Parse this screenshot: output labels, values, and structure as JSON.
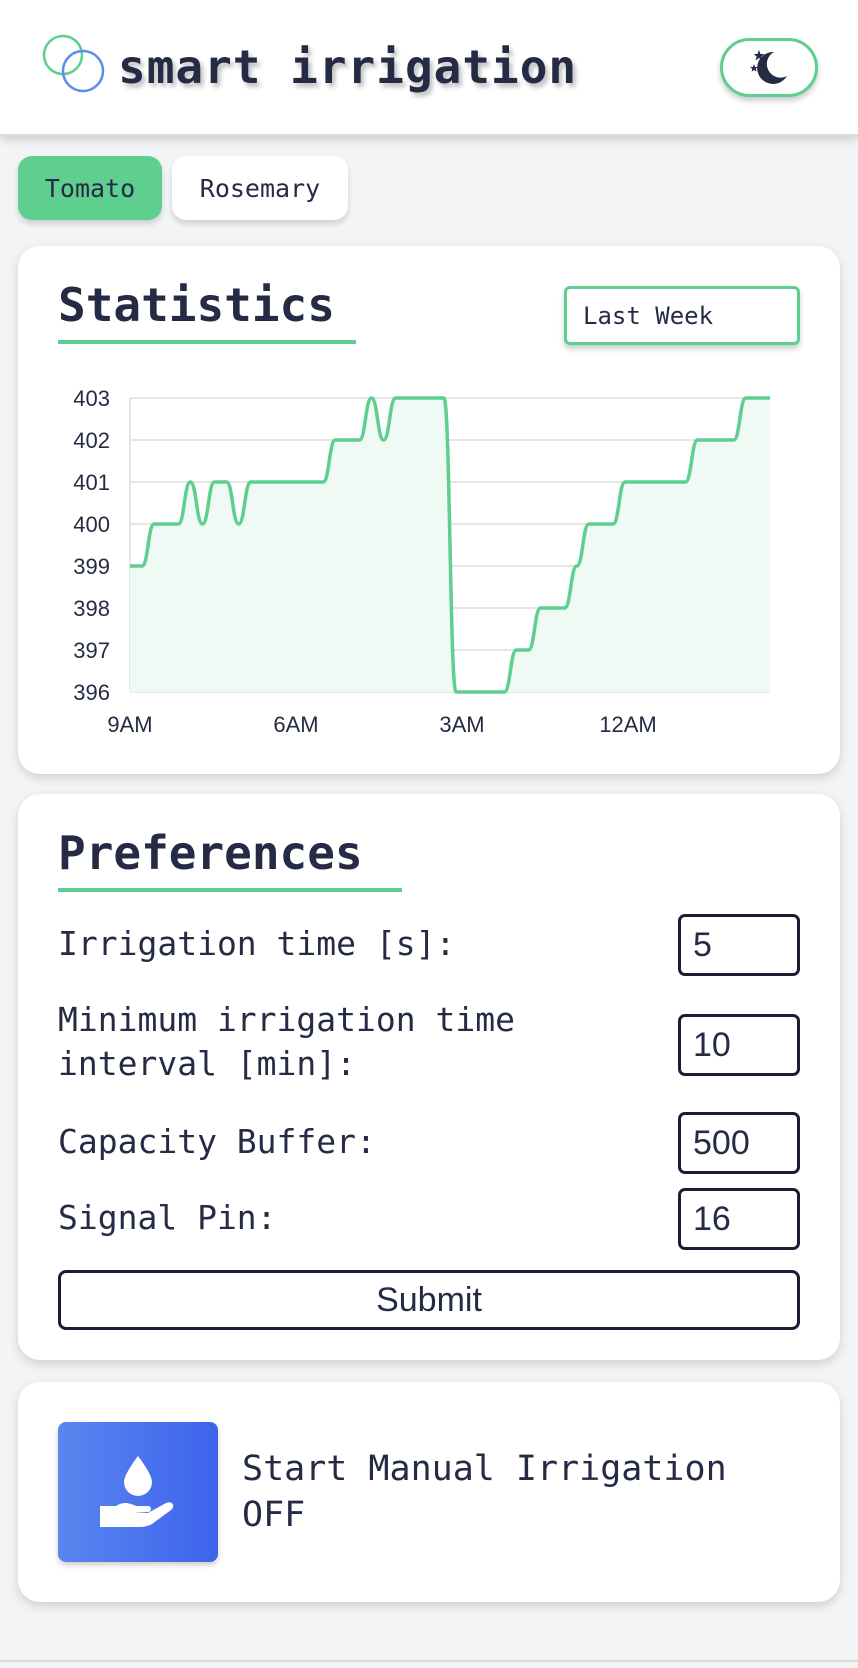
{
  "header": {
    "title": "smart irrigation",
    "logo_icon": "overlapping-circles-icon",
    "theme_toggle_icon": "moon-stars-icon",
    "colors": {
      "accent": "#5ecf8f",
      "logo_green": "#5ecf8f",
      "logo_blue": "#5b8def",
      "text": "#262b45"
    }
  },
  "tabs": [
    {
      "label": "Tomato",
      "active": true
    },
    {
      "label": "Rosemary",
      "active": false
    }
  ],
  "statistics": {
    "title": "Statistics",
    "period": "Last Week"
  },
  "chart_data": {
    "type": "area",
    "title": "",
    "xlabel": "",
    "ylabel": "",
    "ylim": [
      396,
      403
    ],
    "y_ticks": [
      403,
      402,
      401,
      400,
      399,
      398,
      397,
      396
    ],
    "x_tick_labels": [
      "9AM",
      "6AM",
      "3AM",
      "12AM"
    ],
    "grid": true,
    "legend": "none",
    "line_color": "#5ecf8f",
    "fill_color": "#eefaf3",
    "series": [
      {
        "values": [
          399,
          399,
          400,
          400,
          400,
          401,
          400,
          401,
          401,
          400,
          401,
          401,
          401,
          401,
          401,
          401,
          401,
          402,
          402,
          402,
          403,
          402,
          403,
          403,
          403,
          403,
          403,
          396,
          396,
          396,
          396,
          396,
          397,
          397,
          398,
          398,
          398,
          399,
          400,
          400,
          400,
          401,
          401,
          401,
          401,
          401,
          401,
          402,
          402,
          402,
          402,
          403,
          403,
          403
        ]
      }
    ]
  },
  "preferences": {
    "title": "Preferences",
    "fields": [
      {
        "label": "Irrigation time [s]:",
        "value": "5"
      },
      {
        "label": "Minimum irrigation time interval [min]:",
        "value": "10"
      },
      {
        "label": "Capacity Buffer:",
        "value": "500"
      },
      {
        "label": "Signal Pin:",
        "value": "16"
      }
    ],
    "submit_label": "Submit"
  },
  "manual": {
    "icon": "water-drop-hand-icon",
    "label": "Start Manual Irrigation",
    "status": "OFF",
    "button_color": "#4a73ee"
  }
}
